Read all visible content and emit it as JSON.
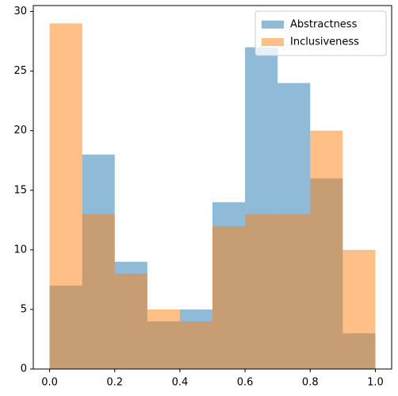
{
  "chart_data": {
    "type": "histogram",
    "bins": [
      0.0,
      0.1,
      0.2,
      0.3,
      0.4,
      0.5,
      0.6,
      0.7,
      0.8,
      0.9,
      1.0
    ],
    "series": [
      {
        "name": "Abstractness",
        "color": "#1f77b4",
        "values": [
          7,
          18,
          9,
          4,
          5,
          14,
          27,
          24,
          16,
          3
        ]
      },
      {
        "name": "Inclusiveness",
        "color": "#ff7f0e",
        "values": [
          29,
          13,
          8,
          5,
          4,
          12,
          13,
          13,
          20,
          10
        ]
      }
    ],
    "alpha": 0.5,
    "xlim": [
      -0.05,
      1.05
    ],
    "ylim": [
      0,
      30.5
    ],
    "xticks": [
      {
        "value": 0,
        "label": "0.0"
      },
      0.2,
      0.4,
      0.6,
      0.8,
      {
        "value": 1,
        "label": "1.0"
      }
    ],
    "yticks": [
      0,
      5,
      10,
      15,
      20,
      25,
      30
    ],
    "legend": "upper right"
  }
}
